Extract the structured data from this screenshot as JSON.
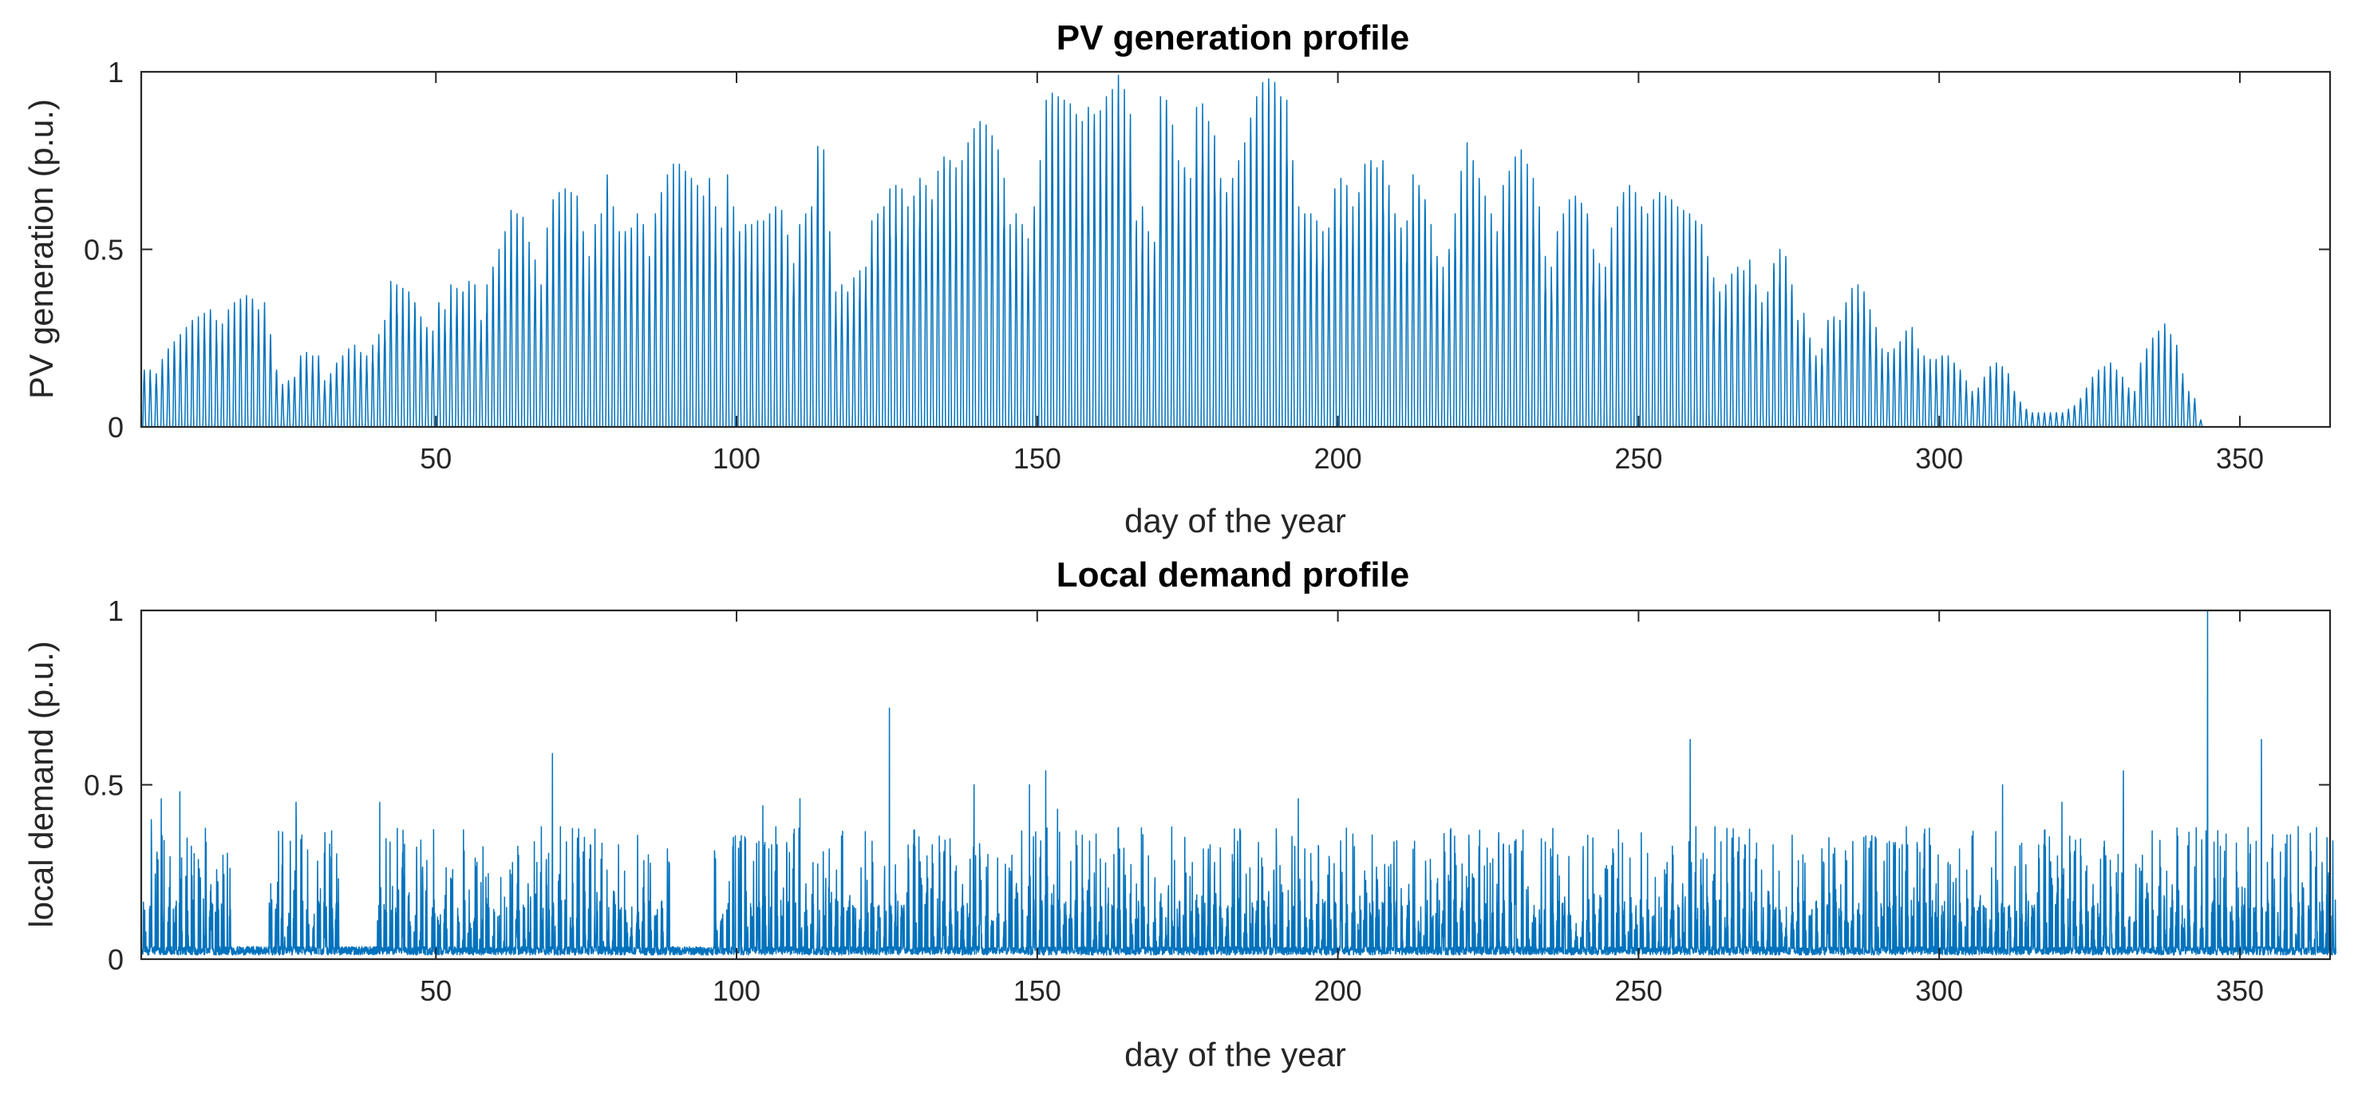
{
  "colors": {
    "series": "#0072BD",
    "axis": "#262626",
    "background": "#ffffff"
  },
  "chart_data": [
    {
      "type": "line",
      "title": "PV generation profile",
      "xlabel": "day of the year",
      "ylabel": "PV generation (p.u.)",
      "xlim": [
        1,
        365
      ],
      "ylim": [
        0,
        1
      ],
      "xticks": [
        50,
        100,
        150,
        200,
        250,
        300,
        350
      ],
      "yticks": [
        0,
        0.5,
        1
      ],
      "ytick_labels": [
        "0",
        "0.5",
        "1"
      ],
      "series": [
        {
          "name": "PV generation",
          "note": "hourly profile; daily peak (p.u.) listed for days 1-365",
          "daily_peak": [
            0.16,
            0.16,
            0.15,
            0.19,
            0.22,
            0.24,
            0.26,
            0.28,
            0.3,
            0.31,
            0.32,
            0.33,
            0.3,
            0.29,
            0.33,
            0.35,
            0.36,
            0.37,
            0.36,
            0.33,
            0.35,
            0.26,
            0.16,
            0.12,
            0.13,
            0.14,
            0.2,
            0.21,
            0.2,
            0.2,
            0.13,
            0.15,
            0.18,
            0.2,
            0.22,
            0.23,
            0.21,
            0.2,
            0.23,
            0.26,
            0.3,
            0.41,
            0.4,
            0.39,
            0.38,
            0.35,
            0.31,
            0.28,
            0.27,
            0.35,
            0.33,
            0.4,
            0.39,
            0.38,
            0.41,
            0.4,
            0.3,
            0.4,
            0.45,
            0.5,
            0.55,
            0.61,
            0.6,
            0.59,
            0.52,
            0.47,
            0.4,
            0.56,
            0.64,
            0.66,
            0.67,
            0.66,
            0.65,
            0.55,
            0.48,
            0.57,
            0.6,
            0.71,
            0.62,
            0.55,
            0.55,
            0.56,
            0.6,
            0.57,
            0.48,
            0.6,
            0.66,
            0.71,
            0.74,
            0.74,
            0.72,
            0.7,
            0.68,
            0.65,
            0.7,
            0.62,
            0.56,
            0.71,
            0.62,
            0.55,
            0.57,
            0.57,
            0.58,
            0.58,
            0.6,
            0.62,
            0.61,
            0.54,
            0.46,
            0.57,
            0.6,
            0.62,
            0.79,
            0.78,
            0.55,
            0.38,
            0.4,
            0.38,
            0.42,
            0.44,
            0.45,
            0.58,
            0.6,
            0.62,
            0.67,
            0.68,
            0.67,
            0.62,
            0.65,
            0.7,
            0.68,
            0.64,
            0.72,
            0.76,
            0.75,
            0.73,
            0.75,
            0.8,
            0.84,
            0.86,
            0.85,
            0.82,
            0.78,
            0.7,
            0.57,
            0.6,
            0.57,
            0.53,
            0.62,
            0.75,
            0.92,
            0.94,
            0.93,
            0.92,
            0.91,
            0.88,
            0.86,
            0.9,
            0.88,
            0.89,
            0.93,
            0.95,
            0.99,
            0.95,
            0.88,
            0.58,
            0.62,
            0.55,
            0.52,
            0.93,
            0.92,
            0.85,
            0.75,
            0.73,
            0.7,
            0.9,
            0.91,
            0.86,
            0.82,
            0.7,
            0.66,
            0.7,
            0.75,
            0.8,
            0.87,
            0.93,
            0.97,
            0.98,
            0.97,
            0.93,
            0.92,
            0.75,
            0.62,
            0.6,
            0.6,
            0.58,
            0.55,
            0.56,
            0.67,
            0.7,
            0.68,
            0.62,
            0.66,
            0.74,
            0.75,
            0.73,
            0.75,
            0.68,
            0.6,
            0.56,
            0.58,
            0.71,
            0.68,
            0.64,
            0.57,
            0.48,
            0.45,
            0.5,
            0.6,
            0.72,
            0.8,
            0.75,
            0.7,
            0.65,
            0.6,
            0.55,
            0.68,
            0.72,
            0.76,
            0.78,
            0.74,
            0.7,
            0.62,
            0.48,
            0.45,
            0.55,
            0.6,
            0.64,
            0.65,
            0.63,
            0.6,
            0.5,
            0.46,
            0.45,
            0.56,
            0.62,
            0.66,
            0.68,
            0.66,
            0.62,
            0.6,
            0.64,
            0.66,
            0.65,
            0.64,
            0.62,
            0.61,
            0.6,
            0.58,
            0.57,
            0.48,
            0.42,
            0.38,
            0.4,
            0.43,
            0.45,
            0.44,
            0.47,
            0.4,
            0.35,
            0.38,
            0.46,
            0.5,
            0.48,
            0.4,
            0.3,
            0.32,
            0.25,
            0.2,
            0.22,
            0.3,
            0.31,
            0.3,
            0.35,
            0.39,
            0.4,
            0.38,
            0.33,
            0.28,
            0.22,
            0.21,
            0.22,
            0.24,
            0.27,
            0.28,
            0.22,
            0.2,
            0.19,
            0.19,
            0.2,
            0.2,
            0.18,
            0.16,
            0.13,
            0.1,
            0.11,
            0.14,
            0.17,
            0.18,
            0.17,
            0.15,
            0.1,
            0.07,
            0.05,
            0.04,
            0.04,
            0.04,
            0.04,
            0.04,
            0.04,
            0.05,
            0.06,
            0.08,
            0.11,
            0.14,
            0.16,
            0.17,
            0.18,
            0.16,
            0.14,
            0.11,
            0.1,
            0.18,
            0.22,
            0.25,
            0.27,
            0.29,
            0.26,
            0.23,
            0.15,
            0.1,
            0.08,
            0.02
          ]
        }
      ]
    },
    {
      "type": "line",
      "title": "Local demand profile",
      "xlabel": "day of the year",
      "ylabel": "local demand (p.u.)",
      "xlim": [
        1,
        365
      ],
      "ylim": [
        0,
        1
      ],
      "xticks": [
        50,
        100,
        150,
        200,
        250,
        300,
        350
      ],
      "yticks": [
        0,
        0.5,
        1
      ],
      "ytick_labels": [
        "0",
        "0.5",
        "1"
      ],
      "series": [
        {
          "name": "local demand",
          "note": "hourly profile; baseline ~0.02-0.05 p.u. with spikes",
          "baseline": 0.03,
          "typical_spike_range": [
            0.15,
            0.38
          ],
          "notable_spikes": [
            {
              "day": 2,
              "value": 0.4
            },
            {
              "day": 4,
              "value": 0.46
            },
            {
              "day": 7,
              "value": 0.48
            },
            {
              "day": 26,
              "value": 0.45
            },
            {
              "day": 40,
              "value": 0.45
            },
            {
              "day": 69,
              "value": 0.59
            },
            {
              "day": 104,
              "value": 0.44
            },
            {
              "day": 110,
              "value": 0.46
            },
            {
              "day": 125,
              "value": 0.72
            },
            {
              "day": 139,
              "value": 0.5
            },
            {
              "day": 148,
              "value": 0.5
            },
            {
              "day": 151,
              "value": 0.54
            },
            {
              "day": 153,
              "value": 0.43
            },
            {
              "day": 193,
              "value": 0.46
            },
            {
              "day": 258,
              "value": 0.63
            },
            {
              "day": 310,
              "value": 0.5
            },
            {
              "day": 320,
              "value": 0.45
            },
            {
              "day": 330,
              "value": 0.54
            },
            {
              "day": 344,
              "value": 1.0
            },
            {
              "day": 353,
              "value": 0.63
            },
            {
              "day": 359,
              "value": 0.38
            }
          ]
        }
      ]
    }
  ]
}
